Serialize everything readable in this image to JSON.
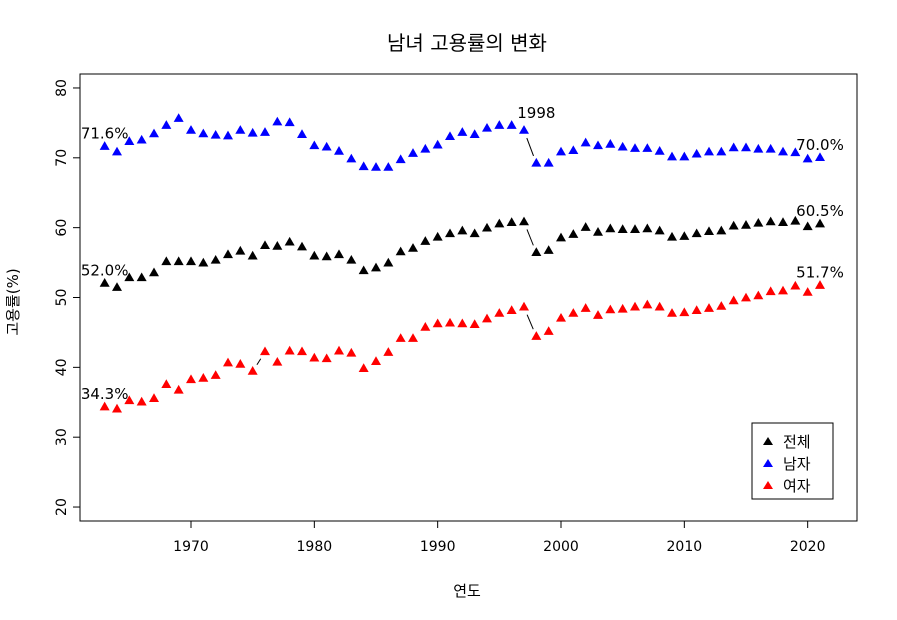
{
  "chart_data": {
    "type": "scatter",
    "title": "남녀 고용률의 변화",
    "xlabel": "연도",
    "ylabel": "고용률(%)",
    "xlim": [
      1961,
      2024
    ],
    "ylim": [
      18,
      82
    ],
    "xticks": [
      1970,
      1980,
      1990,
      2000,
      2010,
      2020
    ],
    "yticks": [
      20,
      30,
      40,
      50,
      60,
      70,
      80
    ],
    "grid": false,
    "legend_position": "bottom-right",
    "x": [
      1963,
      1964,
      1965,
      1966,
      1967,
      1968,
      1969,
      1970,
      1971,
      1972,
      1973,
      1974,
      1975,
      1976,
      1977,
      1978,
      1979,
      1980,
      1981,
      1982,
      1983,
      1984,
      1985,
      1986,
      1987,
      1988,
      1989,
      1990,
      1991,
      1992,
      1993,
      1994,
      1995,
      1996,
      1997,
      1998,
      1999,
      2000,
      2001,
      2002,
      2003,
      2004,
      2005,
      2006,
      2007,
      2008,
      2009,
      2010,
      2011,
      2012,
      2013,
      2014,
      2015,
      2016,
      2017,
      2018,
      2019,
      2020,
      2021
    ],
    "series": [
      {
        "name": "전체",
        "color": "#000000",
        "values": [
          52.0,
          51.4,
          52.8,
          52.8,
          53.5,
          55.1,
          55.1,
          55.1,
          54.9,
          55.3,
          56.1,
          56.6,
          55.9,
          57.4,
          57.3,
          57.9,
          57.2,
          55.9,
          55.8,
          56.1,
          55.3,
          53.8,
          54.2,
          54.9,
          56.5,
          57.0,
          58.0,
          58.6,
          59.1,
          59.5,
          59.1,
          59.9,
          60.5,
          60.7,
          60.8,
          56.4,
          56.7,
          58.5,
          59.0,
          60.0,
          59.3,
          59.8,
          59.7,
          59.7,
          59.8,
          59.5,
          58.6,
          58.7,
          59.1,
          59.4,
          59.5,
          60.2,
          60.3,
          60.6,
          60.8,
          60.7,
          60.9,
          60.1,
          60.5
        ]
      },
      {
        "name": "남자",
        "color": "#0000ff",
        "values": [
          71.6,
          70.8,
          72.3,
          72.5,
          73.4,
          74.6,
          75.6,
          73.9,
          73.4,
          73.2,
          73.1,
          73.9,
          73.5,
          73.6,
          75.1,
          75.0,
          73.3,
          71.7,
          71.5,
          70.9,
          69.8,
          68.7,
          68.6,
          68.6,
          69.7,
          70.6,
          71.2,
          71.8,
          73.0,
          73.6,
          73.3,
          74.2,
          74.6,
          74.6,
          73.9,
          69.2,
          69.2,
          70.8,
          71.0,
          72.1,
          71.7,
          71.9,
          71.5,
          71.3,
          71.3,
          70.9,
          70.1,
          70.1,
          70.5,
          70.8,
          70.8,
          71.4,
          71.4,
          71.2,
          71.2,
          70.8,
          70.7,
          69.8,
          70.0
        ]
      },
      {
        "name": "여자",
        "color": "#ff0000",
        "values": [
          34.3,
          34.0,
          35.2,
          35.0,
          35.5,
          37.5,
          36.7,
          38.2,
          38.4,
          38.8,
          40.6,
          40.4,
          39.4,
          42.2,
          40.7,
          42.3,
          42.2,
          41.3,
          41.2,
          42.3,
          42.0,
          39.8,
          40.8,
          42.1,
          44.1,
          44.1,
          45.7,
          46.2,
          46.3,
          46.2,
          46.1,
          46.9,
          47.7,
          48.1,
          48.6,
          44.4,
          45.1,
          47.0,
          47.7,
          48.4,
          47.4,
          48.2,
          48.3,
          48.6,
          48.9,
          48.6,
          47.7,
          47.8,
          48.1,
          48.4,
          48.7,
          49.5,
          49.9,
          50.2,
          50.8,
          50.9,
          51.6,
          50.7,
          51.7
        ]
      }
    ],
    "annotations": [
      {
        "text": "71.6%",
        "x": 1963,
        "y": 71.6,
        "series": "남자"
      },
      {
        "text": "70.0%",
        "x": 2021,
        "y": 70.0,
        "series": "남자"
      },
      {
        "text": "52.0%",
        "x": 1963,
        "y": 52.0,
        "series": "전체"
      },
      {
        "text": "60.5%",
        "x": 2021,
        "y": 60.5,
        "series": "전체"
      },
      {
        "text": "34.3%",
        "x": 1963,
        "y": 34.3,
        "series": "여자"
      },
      {
        "text": "51.7%",
        "x": 2021,
        "y": 51.7,
        "series": "여자"
      },
      {
        "text": "1998",
        "x": 1998,
        "y": 74.0,
        "series": "남자"
      }
    ]
  }
}
